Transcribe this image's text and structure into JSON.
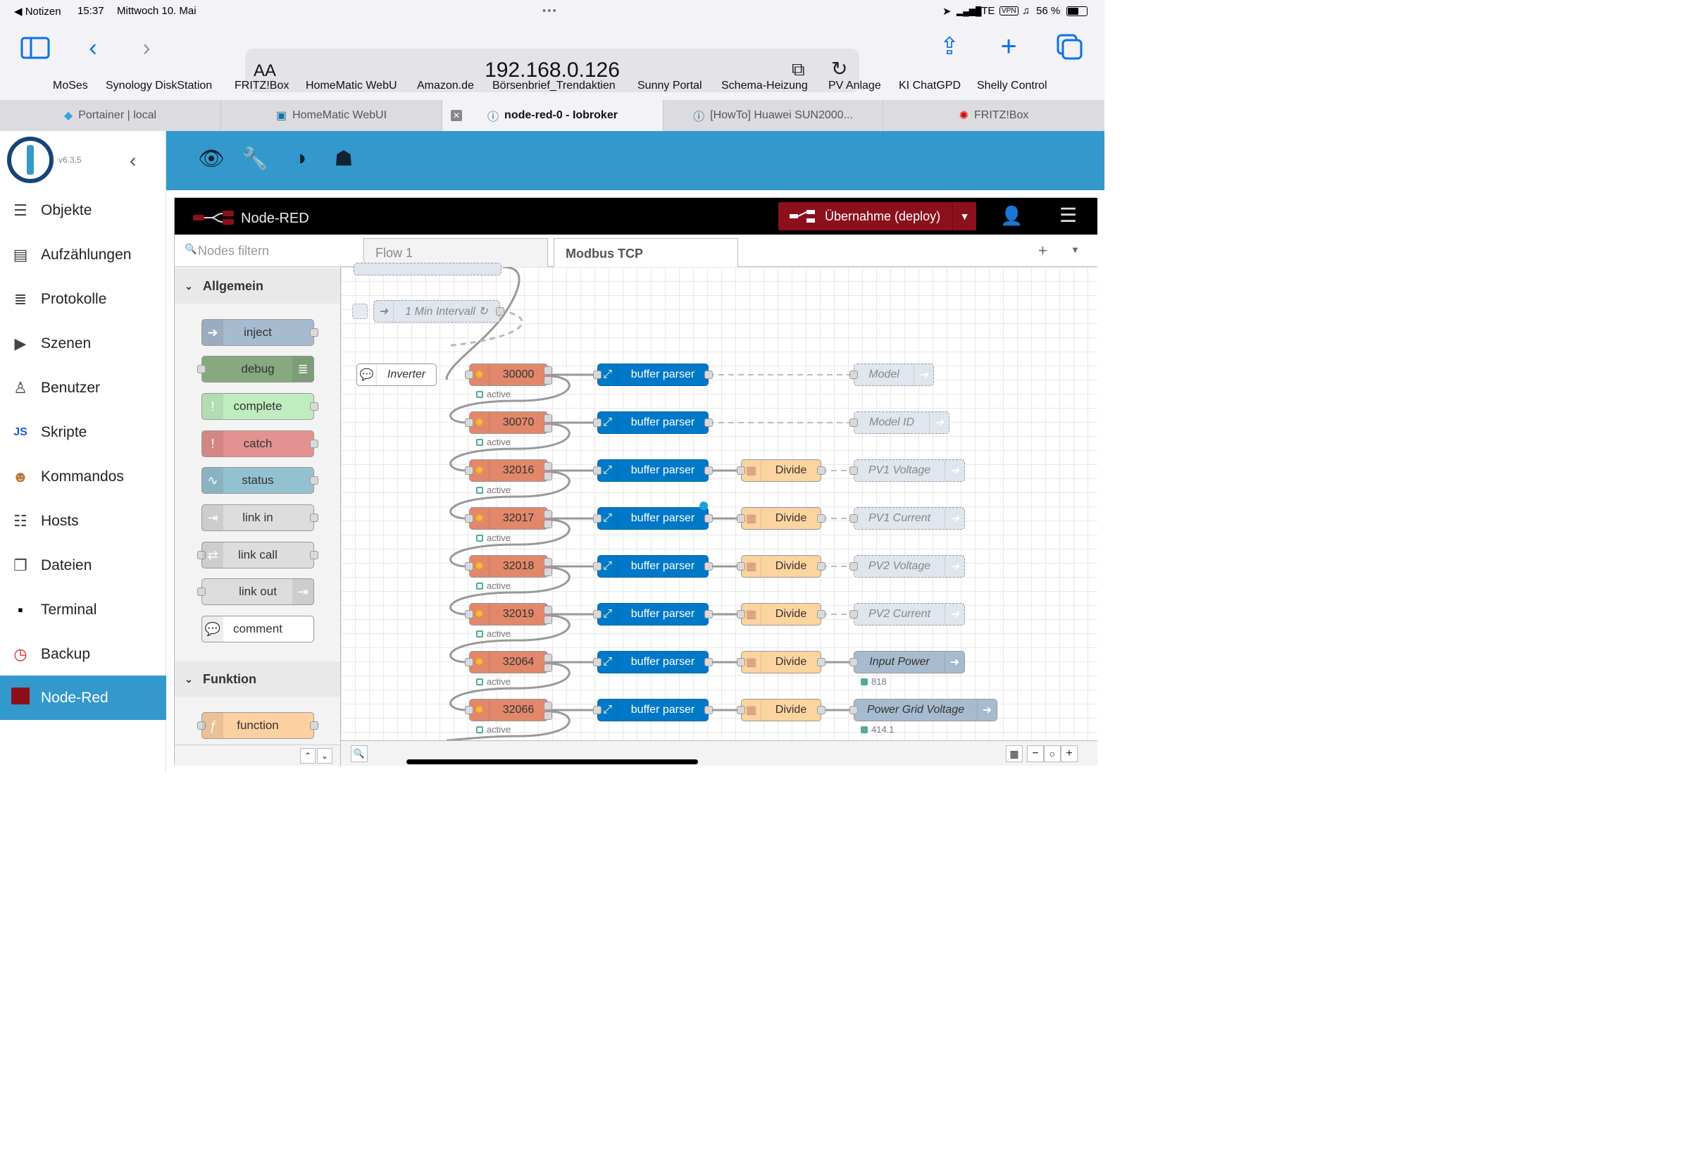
{
  "status_bar": {
    "back_app": "Notizen",
    "time": "15:37",
    "date": "Mittwoch 10. Mai",
    "network": "LTE",
    "vpn": "VPN",
    "battery": "56 %"
  },
  "browser": {
    "url": "192.168.0.126",
    "text_size": "AA",
    "bookmarks": [
      "MoSes",
      "Synology DiskStation",
      "FRITZ!Box",
      "HomeMatic WebU",
      "Amazon.de",
      "Börsenbrief_Trendaktien",
      "Sunny Portal",
      "Schema-Heizung",
      "PV Anlage",
      "KI ChatGPD",
      "Shelly Control"
    ],
    "tabs": [
      "Portainer | local",
      "HomeMatic WebUI",
      "node-red-0 - Iobroker",
      "[HowTo] Huawei SUN2000...",
      "FRITZ!Box"
    ]
  },
  "iobroker": {
    "version": "v6.3.5",
    "menu": [
      "Objekte",
      "Aufzählungen",
      "Protokolle",
      "Szenen",
      "Benutzer",
      "Skripte",
      "Kommandos",
      "Hosts",
      "Dateien",
      "Terminal",
      "Backup",
      "Node-Red"
    ]
  },
  "nodered": {
    "title": "Node-RED",
    "deploy_label": "Übernahme (deploy)",
    "filter_placeholder": "Nodes filtern",
    "categories": [
      "Allgemein",
      "Funktion"
    ],
    "palette": {
      "inject": "inject",
      "debug": "debug",
      "complete": "complete",
      "catch": "catch",
      "status": "status",
      "link_in": "link in",
      "link_call": "link call",
      "link_out": "link out",
      "comment": "comment",
      "function": "function"
    },
    "flow_tabs": [
      "Flow 1",
      "Modbus TCP"
    ],
    "canvas": {
      "interval": "1 Min Intervall ↻",
      "comment": "Inverter",
      "status_active": "active",
      "buffer_label": "buffer parser",
      "divide_label": "Divide",
      "registers": [
        "30000",
        "30070",
        "32016",
        "32017",
        "32018",
        "32019",
        "32064",
        "32066"
      ],
      "outputs": [
        "Model",
        "Model ID",
        "PV1 Voltage",
        "PV1 Current",
        "PV2 Voltage",
        "PV2 Current",
        "Input Power",
        "Power Grid Voltage"
      ],
      "values": {
        "input_power": "818",
        "grid_voltage": "414.1"
      }
    }
  },
  "colors": {
    "iobroker_blue": "#3399cc",
    "deploy_red": "#8c101c",
    "modbus": "#e2876a",
    "buffer": "#0078c8",
    "divide": "#fbd49f",
    "output": "#a6bbcf"
  }
}
